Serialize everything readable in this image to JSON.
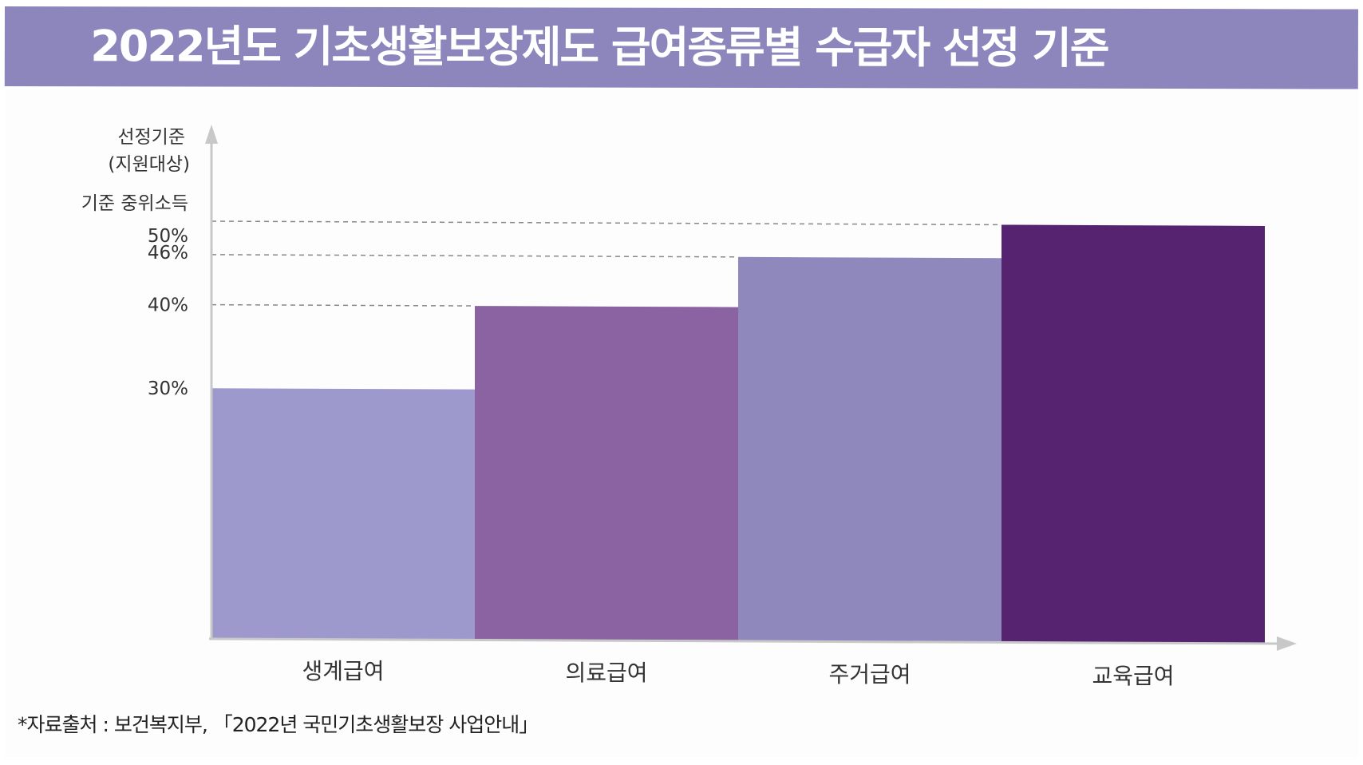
{
  "header": {
    "title": "2022년도 기초생활보장제도 급여종류별 수급자 선정 기준"
  },
  "colors": {
    "title_bar": "#8c86bd",
    "title_text": "#ffffff",
    "axis": "#c8c8c8",
    "gridline": "#888888"
  },
  "chart_data": {
    "type": "bar",
    "title": "2022년도 기초생활보장제도 급여종류별 수급자 선정 기준",
    "ylabel_line1": "선정기준",
    "ylabel_line2": "(지원대상)",
    "ylabel_line3": "기준 중위소득",
    "xlabel": "",
    "categories": [
      "생계급여",
      "의료급여",
      "주거급여",
      "교육급여"
    ],
    "values": [
      30,
      40,
      46,
      50
    ],
    "value_unit": "% of 기준 중위소득",
    "ytick_values": [
      30,
      40,
      46,
      50
    ],
    "ytick_labels": [
      "30%",
      "40%",
      "46%",
      "50%"
    ],
    "gridline_values": [
      40,
      46,
      50
    ],
    "bar_colors": [
      "#9e99cc",
      "#8b62a2",
      "#8f88bd",
      "#55236f"
    ],
    "grid": "dashed reference lines at 40%, 46%, 50%",
    "legend": "none"
  },
  "footer": {
    "source": "*자료출처 : 보건복지부, 「2022년 국민기초생활보장 사업안내」"
  }
}
